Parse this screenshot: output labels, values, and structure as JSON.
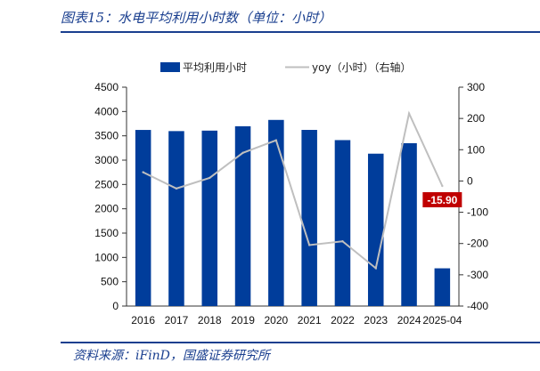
{
  "header": {
    "title": "图表15：水电平均利用小时数（单位：小时）"
  },
  "footer": {
    "source": "资料来源：iFinD，国盛证券研究所"
  },
  "colors": {
    "bar": "#003d9b",
    "line": "#bfbfbf",
    "callout_bg": "#c00000",
    "callout_text": "#ffffff",
    "rule": "#1a3f8f"
  },
  "chart_data": {
    "type": "bar",
    "categories": [
      "2016",
      "2017",
      "2018",
      "2019",
      "2020",
      "2021",
      "2022",
      "2023",
      "2024",
      "2025-04"
    ],
    "series": [
      {
        "name": "平均利用小时",
        "type": "bar",
        "axis": "left",
        "values": [
          3621,
          3597,
          3607,
          3697,
          3827,
          3622,
          3412,
          3133,
          3349,
          776
        ]
      },
      {
        "name": "yoy（小时）（右轴）",
        "type": "line",
        "axis": "right",
        "values": [
          28,
          -24,
          10,
          90,
          130,
          -205,
          -193,
          -279,
          216,
          -15.9
        ]
      }
    ],
    "yleft": {
      "min": 0,
      "max": 4500,
      "step": 500
    },
    "yright": {
      "min": -400,
      "max": 300,
      "step": 100
    },
    "annotation": {
      "series": 1,
      "index": 9,
      "text": "-15.90"
    },
    "legend_position": "top-center",
    "grid": false
  }
}
